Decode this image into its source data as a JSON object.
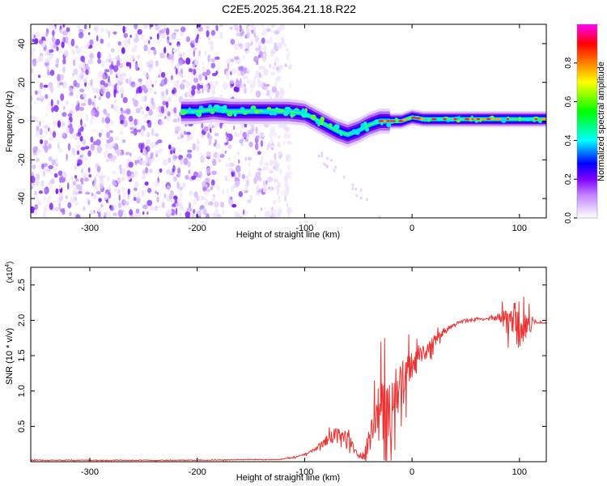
{
  "title": "C2E5.2025.364.21.18.R22",
  "chart_data": [
    {
      "type": "heatmap",
      "title": "C2E5.2025.364.21.18.R22",
      "xlabel": "Height of straight line (km)",
      "ylabel": "Frequency (Hz)",
      "xlim": [
        -355,
        125
      ],
      "ylim": [
        -50,
        50
      ],
      "xticks": [
        -300,
        -200,
        -100,
        0,
        100
      ],
      "xtick_labels": [
        "-300",
        "-200",
        "-100",
        "0",
        "100"
      ],
      "yticks": [
        -40,
        -20,
        0,
        20,
        40
      ],
      "ytick_labels": [
        "-40",
        "-20",
        "0",
        "20",
        "40"
      ],
      "colorbar": {
        "label": "Normalized spectral amplitude",
        "range": [
          0,
          1
        ],
        "ticks": [
          0.0,
          0.2,
          0.4,
          0.6,
          0.8
        ],
        "tick_labels": [
          "0.0",
          "0.2",
          "0.4",
          "0.6",
          "0.8"
        ],
        "colors": [
          "#ffffff",
          "#d9b8ff",
          "#8000ff",
          "#0000ff",
          "#00ffff",
          "#00ff00",
          "#ffff00",
          "#ff8000",
          "#ff0000",
          "#ff00ff"
        ]
      },
      "noise_region_x": [
        -355,
        -125
      ],
      "ridge": {
        "x": [
          -215,
          -200,
          -185,
          -170,
          -150,
          -130,
          -115,
          -100,
          -90,
          -80,
          -70,
          -60,
          -50,
          -40,
          -30,
          -20,
          -10,
          0,
          10,
          30,
          60,
          90,
          110,
          125
        ],
        "freq": [
          5,
          5,
          6,
          5,
          5,
          5,
          5,
          4,
          1,
          -2,
          -5,
          -7,
          -5,
          -2,
          0,
          0,
          0,
          2,
          1,
          1,
          1,
          1,
          1,
          1
        ]
      }
    },
    {
      "type": "line",
      "xlabel": "Height of straight line (km)",
      "ylabel": "SNR (10 * v/v)",
      "y_multiplier": "(x10",
      "y_multiplier_exp": "4",
      "y_multiplier_close": ")",
      "xlim": [
        -355,
        125
      ],
      "ylim": [
        0,
        2.75
      ],
      "xticks": [
        -300,
        -200,
        -100,
        0,
        100
      ],
      "xtick_labels": [
        "-300",
        "-200",
        "-100",
        "0",
        "100"
      ],
      "yticks": [
        0.5,
        1.0,
        1.5,
        2.0,
        2.5
      ],
      "ytick_labels": [
        "0.5",
        "1.0",
        "1.5",
        "2.0",
        "2.5"
      ],
      "color": "#ee3333",
      "envelope": {
        "x": [
          -355,
          -200,
          -150,
          -125,
          -110,
          -100,
          -90,
          -80,
          -70,
          -60,
          -55,
          -50,
          -45,
          -40,
          -35,
          -30,
          -25,
          -20,
          -15,
          -10,
          -5,
          0,
          10,
          20,
          30,
          40,
          50,
          60,
          70,
          80,
          90,
          95,
          100,
          105,
          110,
          115,
          120,
          125
        ],
        "base": [
          0.02,
          0.02,
          0.03,
          0.03,
          0.06,
          0.1,
          0.18,
          0.3,
          0.4,
          0.3,
          0.2,
          0.08,
          0.1,
          0.35,
          0.6,
          0.7,
          0.75,
          0.85,
          0.95,
          1.1,
          1.25,
          1.35,
          1.5,
          1.7,
          1.85,
          1.95,
          2.0,
          2.02,
          2.02,
          2.03,
          2.0,
          1.95,
          1.92,
          1.94,
          1.96,
          1.98,
          1.97,
          1.96
        ],
        "amp": [
          0.01,
          0.01,
          0.01,
          0.01,
          0.02,
          0.03,
          0.05,
          0.12,
          0.3,
          0.35,
          0.15,
          0.06,
          0.15,
          0.5,
          0.8,
          1.0,
          1.1,
          1.3,
          1.0,
          0.85,
          0.6,
          0.45,
          0.3,
          0.2,
          0.1,
          0.05,
          0.04,
          0.04,
          0.05,
          0.1,
          0.5,
          0.7,
          0.8,
          0.55,
          0.3,
          0.06,
          0.03,
          0.03
        ]
      }
    }
  ]
}
